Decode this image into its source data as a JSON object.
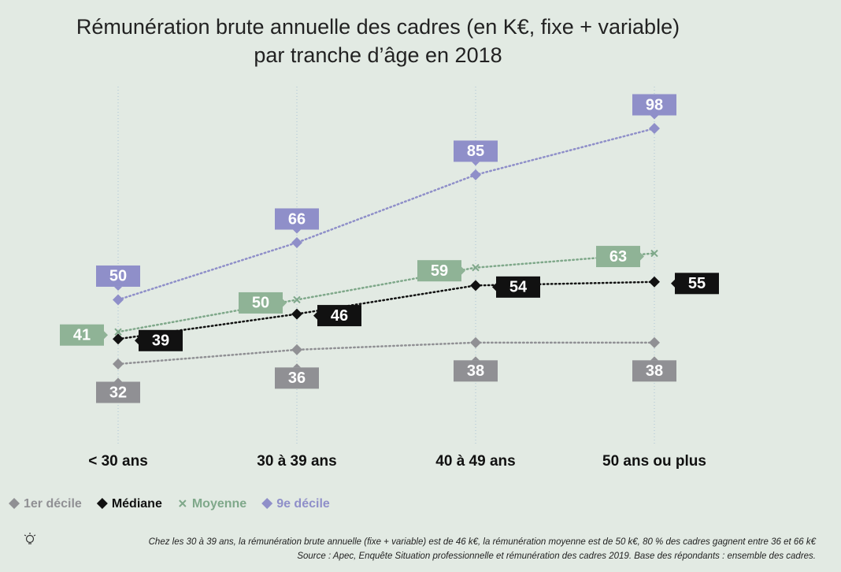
{
  "chart_data": {
    "type": "line",
    "title": [
      "Rémunération brute annuelle des cadres (en K€, fixe + variable)",
      "par tranche d’âge en 2018"
    ],
    "categories": [
      "< 30 ans",
      "30 à 39 ans",
      "40 à 49 ans",
      "50 ans ou plus"
    ],
    "series": [
      {
        "name": "1er décile",
        "color": "#909094",
        "marker": "diamond",
        "label_position": "below",
        "values": [
          32,
          36,
          38,
          38
        ]
      },
      {
        "name": "Médiane",
        "color": "#111111",
        "marker": "diamond",
        "label_position": "right",
        "values": [
          39,
          46,
          54,
          55
        ]
      },
      {
        "name": "Moyenne",
        "color": "#7fa88a",
        "marker": "x",
        "label_position": "left",
        "values": [
          41,
          50,
          59,
          63
        ]
      },
      {
        "name": "9e décile",
        "color": "#8f8fc9",
        "marker": "diamond",
        "label_position": "above",
        "values": [
          50,
          66,
          85,
          98
        ]
      }
    ],
    "grid": true,
    "notes": [
      "Chez les 30 à 39 ans, la rémunération brute annuelle (fixe + variable) est de 46 k€, la rémunération moyenne est de 50 k€, 80 % des cadres gagnent entre 36 et 66 k€",
      "Source : Apec, Enquête Situation professionnelle et rémunération des cadres 2019. Base des répondants : ensemble des cadres."
    ]
  }
}
